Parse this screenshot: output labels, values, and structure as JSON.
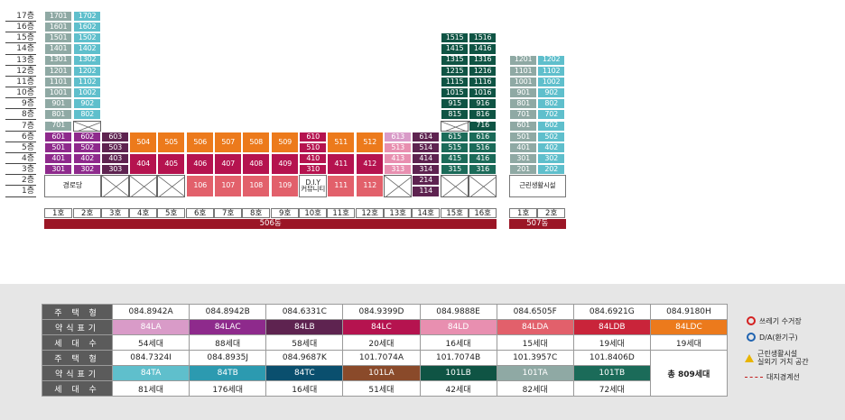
{
  "floors": [
    "17층",
    "16층",
    "15층",
    "14층",
    "13층",
    "12층",
    "11층",
    "10층",
    "9층",
    "8층",
    "7층",
    "6층",
    "5층",
    "4층",
    "3층",
    "2층",
    "1층"
  ],
  "units": {
    "c1": {
      "17": "1701",
      "16": "1601",
      "15": "1501",
      "14": "1401",
      "13": "1301",
      "12": "1201",
      "11": "1101",
      "10": "1001",
      "9": "901",
      "8": "801",
      "7": "701",
      "6": "601",
      "5": "501",
      "4": "401",
      "3": "301"
    },
    "c2": {
      "17": "1702",
      "16": "1602",
      "15": "1502",
      "14": "1402",
      "13": "1302",
      "12": "1202",
      "11": "1102",
      "10": "1002",
      "9": "902",
      "8": "802",
      "6": "602",
      "5": "502",
      "4": "402",
      "3": "302"
    },
    "c3": {
      "6": "603",
      "5": "503",
      "4": "403",
      "3": "303"
    },
    "c4": {
      "5": "504",
      "3": "404"
    },
    "c5": {
      "5": "505",
      "3": "405"
    },
    "c6": {
      "5": "506",
      "3": "406",
      "1": "106"
    },
    "c7": {
      "5": "507",
      "3": "407",
      "1": "107"
    },
    "c8": {
      "5": "508",
      "3": "408",
      "1": "108"
    },
    "c9": {
      "5": "509",
      "3": "409",
      "1": "109"
    },
    "c10": {
      "6": "610",
      "5": "510",
      "4": "410",
      "3": "310"
    },
    "c11": {
      "5": "511",
      "3": "411",
      "1": "111"
    },
    "c12": {
      "5": "512",
      "3": "412",
      "1": "112"
    },
    "c13": {
      "6": "613",
      "5": "513",
      "4": "413",
      "3": "313"
    },
    "c14": {
      "6": "614",
      "5": "514",
      "4": "414",
      "3": "314",
      "2": "214",
      "1": "114"
    },
    "c15": {
      "15": "1515",
      "14": "1415",
      "13": "1315",
      "12": "1215",
      "11": "1115",
      "10": "1015",
      "9": "915",
      "8": "815",
      "6": "615",
      "5": "515",
      "4": "415",
      "3": "315"
    },
    "c16": {
      "15": "1516",
      "14": "1416",
      "13": "1316",
      "12": "1216",
      "11": "1116",
      "10": "1016",
      "9": "916",
      "8": "816",
      "7": "716",
      "6": "616",
      "5": "516",
      "4": "416",
      "3": "316"
    },
    "d1": {
      "13": "1201",
      "12": "1101",
      "11": "1001",
      "10": "901",
      "9": "801",
      "8": "701",
      "7": "601",
      "6": "501",
      "5": "401",
      "4": "301",
      "3": "201"
    },
    "d2": {
      "13": "1202",
      "12": "1102",
      "11": "1002",
      "10": "902",
      "9": "802",
      "8": "702",
      "7": "602",
      "6": "502",
      "5": "402",
      "4": "302",
      "3": "202"
    }
  },
  "facilities": {
    "senior_center": "경로당",
    "diy_community": "D.I.Y\n커뮤니티",
    "neighborhood": "근린생활시설"
  },
  "unit_numbers_506": [
    "1호",
    "2호",
    "3호",
    "4호",
    "5호",
    "6호",
    "7호",
    "8호",
    "9호",
    "10호",
    "11호",
    "12호",
    "13호",
    "14호",
    "15호",
    "16호"
  ],
  "unit_numbers_507": [
    "1호",
    "2호"
  ],
  "buildings": {
    "b506": "506동",
    "b507": "507동"
  },
  "type_colors": {
    "84LA": "#d99bc8",
    "84LAC": "#8e2a8c",
    "84LB": "#5e2350",
    "84LC": "#b5134f",
    "84LD": "#e88fb0",
    "84LDA": "#e2606b",
    "84LDB": "#c9243a",
    "84LDC": "#ec7a1c",
    "84TA": "#5fbfcc",
    "84TB": "#2c9ab0",
    "84TC": "#0a4f6e",
    "101LA": "#8a4a2a",
    "101LB": "#0f5444",
    "101TA": "#8fa9a4",
    "101TB": "#1b6b59"
  },
  "table": {
    "headers": {
      "type": "주 택 형",
      "code": "약식표기",
      "households": "세 대 수"
    },
    "row1_types": [
      "084.8942A",
      "084.8942B",
      "084.6331C",
      "084.9399D",
      "084.9888E",
      "084.6505F",
      "084.6921G",
      "084.9180H"
    ],
    "row1_codes": [
      "84LA",
      "84LAC",
      "84LB",
      "84LC",
      "84LD",
      "84LDA",
      "84LDB",
      "84LDC"
    ],
    "row1_households": [
      "54세대",
      "88세대",
      "58세대",
      "20세대",
      "16세대",
      "15세대",
      "19세대",
      "19세대"
    ],
    "row2_types": [
      "084.7324I",
      "084.8935J",
      "084.9687K",
      "101.7074A",
      "101.7074B",
      "101.3957C",
      "101.8406D"
    ],
    "row2_codes": [
      "84TA",
      "84TB",
      "84TC",
      "101LA",
      "101LB",
      "101TA",
      "101TB"
    ],
    "row2_households": [
      "81세대",
      "176세대",
      "16세대",
      "51세대",
      "42세대",
      "82세대",
      "72세대"
    ],
    "total": "총 809세대"
  },
  "legend": {
    "trash": "쓰레기 수거장",
    "da": "D/A(환기구)",
    "neighborhood_1": "근린생활시설",
    "neighborhood_2": "실외기 거치 공간",
    "boundary": "대지경계선",
    "trash_color": "#d42020",
    "da_color": "#1f63b0",
    "warn_color": "#e8b400",
    "boundary_color": "#c21c1c"
  }
}
